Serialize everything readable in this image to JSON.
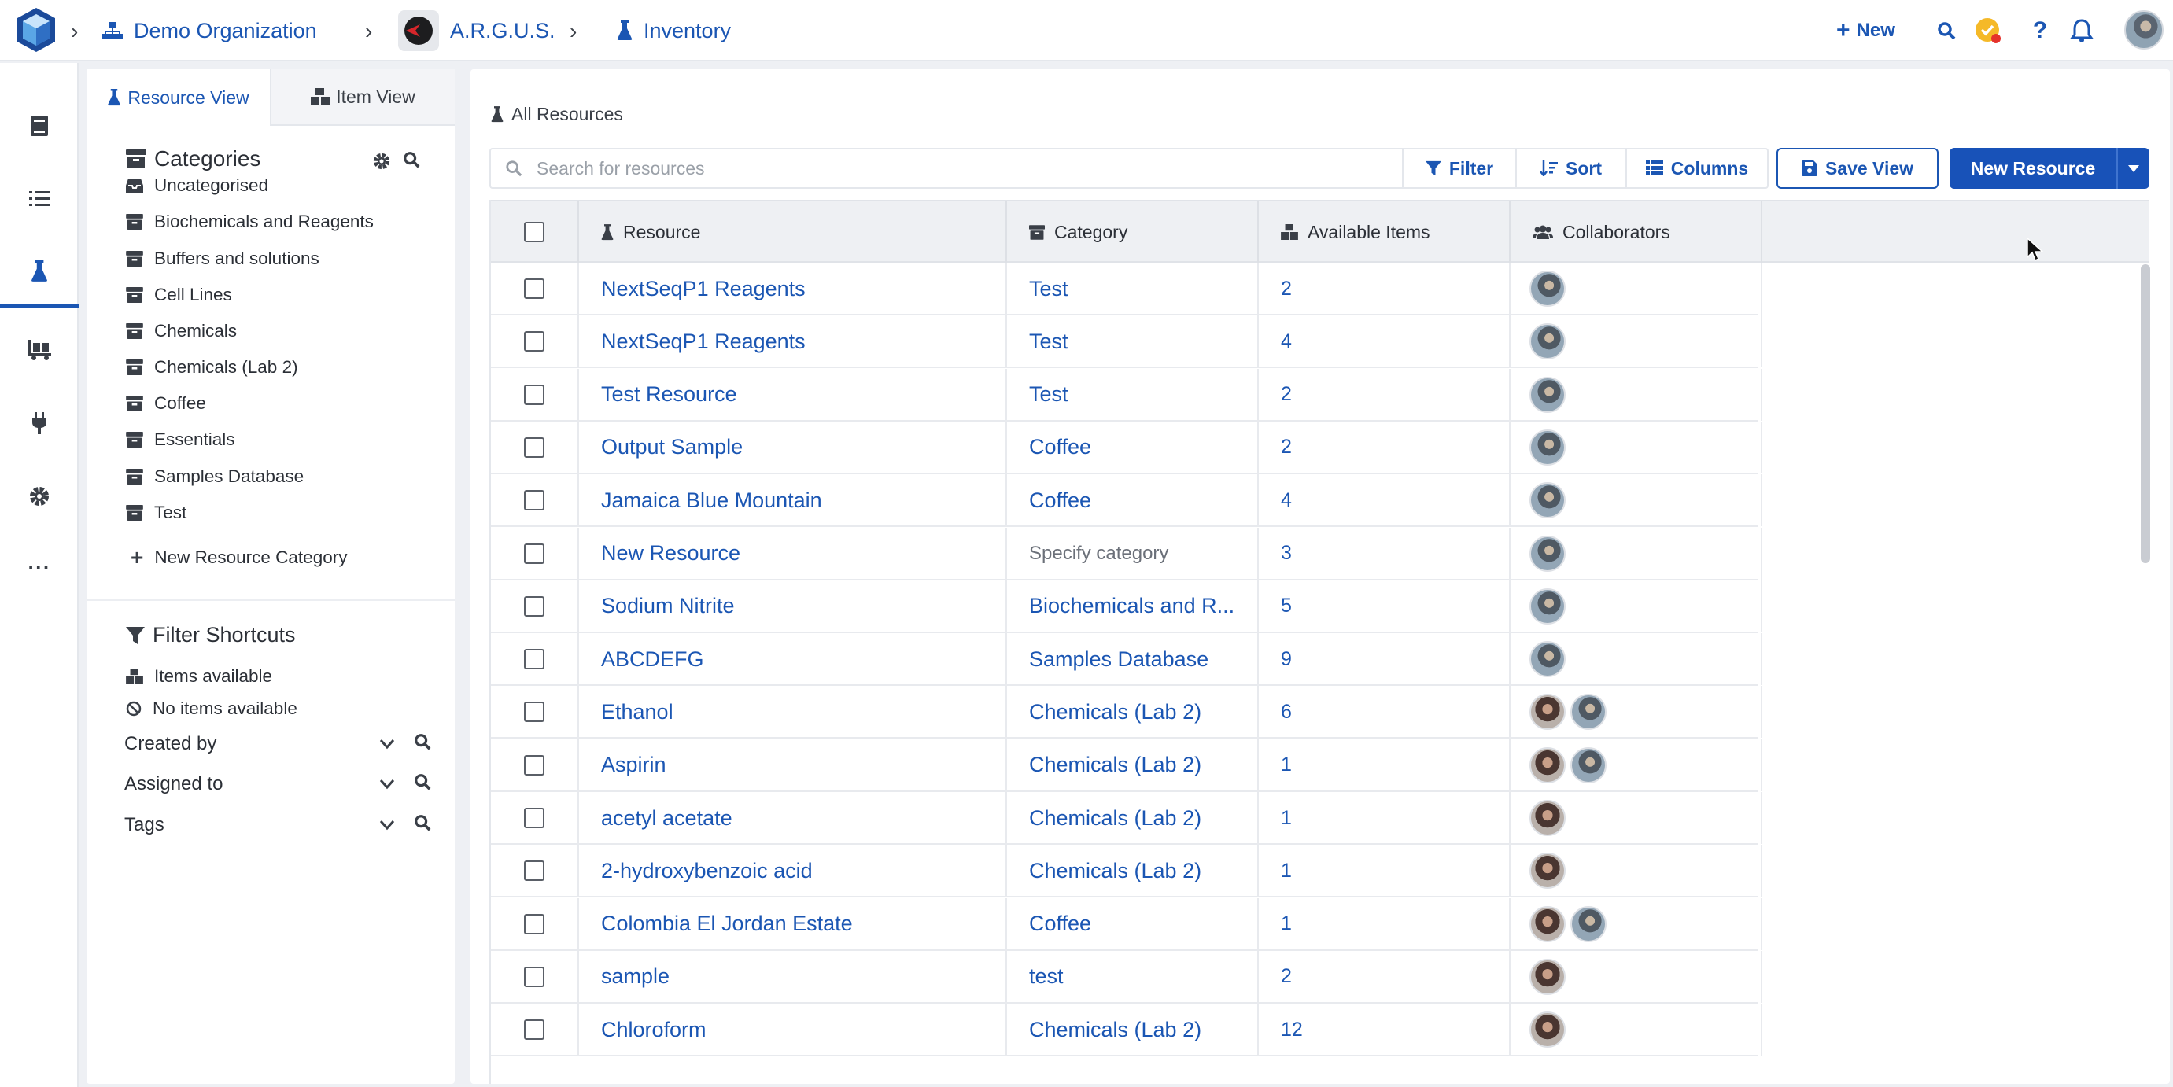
{
  "breadcrumb": {
    "org": "Demo Organization",
    "lab": "A.R.G.U.S.",
    "page": "Inventory"
  },
  "topbar": {
    "new_label": "New"
  },
  "sidepanel": {
    "tabs": [
      "Resource View",
      "Item View"
    ],
    "categories_title": "Categories",
    "categories": [
      "Uncategorised",
      "Biochemicals and Reagents",
      "Buffers and solutions",
      "Cell Lines",
      "Chemicals",
      "Chemicals (Lab 2)",
      "Coffee",
      "Essentials",
      "Samples Database",
      "Test"
    ],
    "new_category": "New Resource Category",
    "filter_title": "Filter Shortcuts",
    "shortcuts": [
      "Items available",
      "No items available"
    ],
    "filters": [
      "Created by",
      "Assigned to",
      "Tags"
    ]
  },
  "main": {
    "heading": "All Resources",
    "search_placeholder": "Search for resources",
    "filter_label": "Filter",
    "sort_label": "Sort",
    "columns_label": "Columns",
    "save_view_label": "Save View",
    "new_resource_label": "New Resource"
  },
  "table": {
    "headers": [
      "Resource",
      "Category",
      "Available Items",
      "Collaborators"
    ],
    "rows": [
      {
        "resource": "NextSeqP1 Reagents",
        "category": "Test",
        "available": "2",
        "collab": [
          "m"
        ]
      },
      {
        "resource": "NextSeqP1 Reagents",
        "category": "Test",
        "available": "4",
        "collab": [
          "m"
        ]
      },
      {
        "resource": "Test Resource",
        "category": "Test",
        "available": "2",
        "collab": [
          "m"
        ]
      },
      {
        "resource": "Output Sample",
        "category": "Coffee",
        "available": "2",
        "collab": [
          "m"
        ]
      },
      {
        "resource": "Jamaica Blue Mountain",
        "category": "Coffee",
        "available": "4",
        "collab": [
          "m"
        ]
      },
      {
        "resource": "New Resource",
        "category": "Specify category",
        "available": "3",
        "collab": [
          "m"
        ],
        "muted": true
      },
      {
        "resource": "Sodium Nitrite",
        "category": "Biochemicals and R...",
        "available": "5",
        "collab": [
          "m"
        ]
      },
      {
        "resource": "ABCDEFG",
        "category": "Samples Database",
        "available": "9",
        "collab": [
          "m"
        ]
      },
      {
        "resource": "Ethanol",
        "category": "Chemicals (Lab 2)",
        "available": "6",
        "collab": [
          "f",
          "m"
        ]
      },
      {
        "resource": "Aspirin",
        "category": "Chemicals (Lab 2)",
        "available": "1",
        "collab": [
          "f",
          "m"
        ]
      },
      {
        "resource": "acetyl acetate",
        "category": "Chemicals (Lab 2)",
        "available": "1",
        "collab": [
          "f"
        ]
      },
      {
        "resource": "2-hydroxybenzoic acid",
        "category": "Chemicals (Lab 2)",
        "available": "1",
        "collab": [
          "f"
        ]
      },
      {
        "resource": "Colombia El Jordan Estate",
        "category": "Coffee",
        "available": "1",
        "collab": [
          "f",
          "m"
        ]
      },
      {
        "resource": "sample",
        "category": "test",
        "available": "2",
        "collab": [
          "f"
        ]
      },
      {
        "resource": "Chloroform",
        "category": "Chemicals (Lab 2)",
        "available": "12",
        "collab": [
          "f"
        ]
      }
    ]
  },
  "colors": {
    "accent": "#1b56b3",
    "primary_button": "#1852b8",
    "background": "#eef0f4"
  }
}
